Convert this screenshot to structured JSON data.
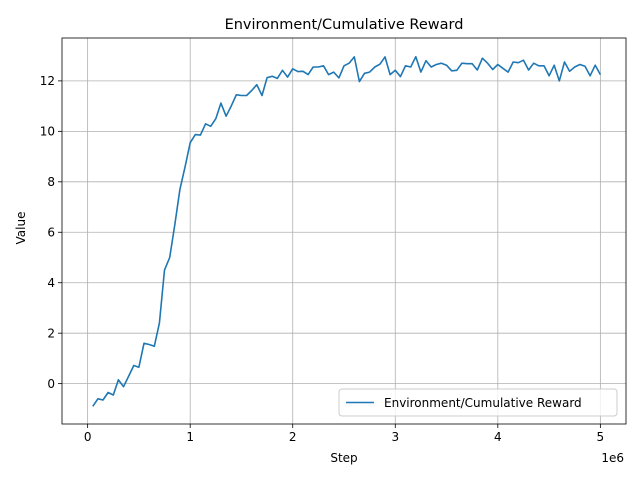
{
  "chart_data": {
    "type": "line",
    "title": "Environment/Cumulative Reward",
    "xlabel": "Step",
    "ylabel": "Value",
    "x_offset_label": "1e6",
    "xlim": [
      -250000,
      5250000
    ],
    "ylim": [
      -1.6,
      13.7
    ],
    "xticks": [
      0,
      1000000,
      2000000,
      3000000,
      4000000,
      5000000
    ],
    "xtick_labels": [
      "0",
      "1",
      "2",
      "3",
      "4",
      "5"
    ],
    "yticks": [
      0,
      2,
      4,
      6,
      8,
      10,
      12
    ],
    "ytick_labels": [
      "0",
      "2",
      "4",
      "6",
      "8",
      "10",
      "12"
    ],
    "grid": true,
    "legend_position": "lower-right",
    "series": [
      {
        "name": "Environment/Cumulative Reward",
        "color": "#1f77b4",
        "x": [
          50000,
          100000,
          150000,
          200000,
          250000,
          300000,
          350000,
          400000,
          450000,
          500000,
          550000,
          600000,
          650000,
          700000,
          750000,
          800000,
          850000,
          900000,
          950000,
          1000000,
          1050000,
          1100000,
          1150000,
          1200000,
          1250000,
          1300000,
          1350000,
          1400000,
          1450000,
          1500000,
          1550000,
          1600000,
          1650000,
          1700000,
          1750000,
          1800000,
          1850000,
          1900000,
          1950000,
          2000000,
          2050000,
          2100000,
          2150000,
          2200000,
          2250000,
          2300000,
          2350000,
          2400000,
          2450000,
          2500000,
          2550000,
          2600000,
          2650000,
          2700000,
          2750000,
          2800000,
          2850000,
          2900000,
          2950000,
          3000000,
          3050000,
          3100000,
          3150000,
          3200000,
          3250000,
          3300000,
          3350000,
          3400000,
          3450000,
          3500000,
          3550000,
          3600000,
          3650000,
          3700000,
          3750000,
          3800000,
          3850000,
          3900000,
          3950000,
          4000000,
          4050000,
          4100000,
          4150000,
          4200000,
          4250000,
          4300000,
          4350000,
          4400000,
          4450000,
          4500000,
          4550000,
          4600000,
          4650000,
          4700000,
          4750000,
          4800000,
          4850000,
          4900000,
          4950000,
          5000000
        ],
        "y": [
          -0.9,
          -0.6,
          -0.65,
          -0.35,
          -0.45,
          0.15,
          -0.12,
          0.3,
          0.72,
          0.65,
          1.6,
          1.55,
          1.48,
          2.4,
          4.5,
          5.0,
          6.3,
          7.7,
          8.6,
          9.55,
          9.87,
          9.85,
          10.3,
          10.2,
          10.5,
          11.12,
          10.6,
          11.0,
          11.45,
          11.42,
          11.42,
          11.62,
          11.85,
          11.42,
          12.13,
          12.18,
          12.1,
          12.42,
          12.15,
          12.48,
          12.37,
          12.38,
          12.25,
          12.55,
          12.55,
          12.6,
          12.25,
          12.35,
          12.12,
          12.6,
          12.7,
          12.95,
          11.97,
          12.3,
          12.35,
          12.55,
          12.66,
          12.95,
          12.25,
          12.42,
          12.17,
          12.6,
          12.55,
          12.96,
          12.35,
          12.8,
          12.55,
          12.65,
          12.7,
          12.62,
          12.4,
          12.42,
          12.7,
          12.68,
          12.68,
          12.43,
          12.9,
          12.7,
          12.45,
          12.65,
          12.5,
          12.35,
          12.75,
          12.72,
          12.82,
          12.43,
          12.7,
          12.6,
          12.6,
          12.2,
          12.62,
          12.0,
          12.75,
          12.38,
          12.55,
          12.65,
          12.58,
          12.2,
          12.62,
          12.25
        ]
      }
    ]
  }
}
